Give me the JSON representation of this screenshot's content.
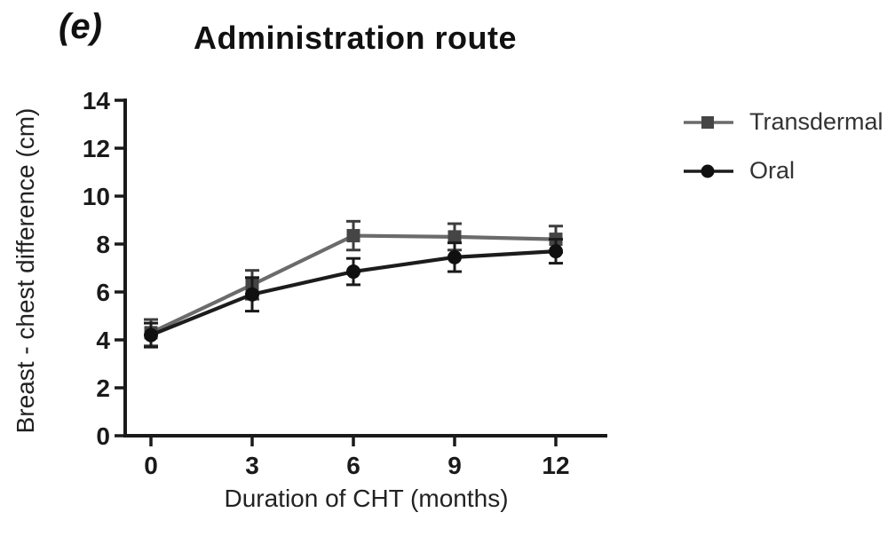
{
  "figure": {
    "panel_label": "(e)",
    "title": "Administration route",
    "background_color": "#ffffff",
    "axis_color": "#1a1a1a",
    "x_axis": {
      "label": "Duration of CHT (months)",
      "ticks": [
        0,
        3,
        6,
        9,
        12
      ]
    },
    "y_axis": {
      "label": "Breast - chest difference (cm)",
      "ticks": [
        0,
        2,
        4,
        6,
        8,
        10,
        12,
        14
      ]
    }
  },
  "chart_data": {
    "type": "line",
    "title": "Administration route",
    "xlabel": "Duration of CHT (months)",
    "ylabel": "Breast - chest difference (cm)",
    "x": [
      0,
      3,
      6,
      9,
      12
    ],
    "xlim": [
      0,
      13.5
    ],
    "ylim": [
      0,
      14
    ],
    "grid": false,
    "legend_position": "right-outside",
    "error_bars": true,
    "series": [
      {
        "name": "Transdermal",
        "marker": "square",
        "line_color": "#6b6b6b",
        "marker_color": "#454545",
        "error_color": "#3d3d3d",
        "values": [
          4.3,
          6.3,
          8.35,
          8.3,
          8.2
        ],
        "errors": [
          0.55,
          0.6,
          0.6,
          0.55,
          0.55
        ]
      },
      {
        "name": "Oral",
        "marker": "circle",
        "line_color": "#1c1c1c",
        "marker_color": "#101010",
        "error_color": "#1a1a1a",
        "values": [
          4.2,
          5.9,
          6.85,
          7.45,
          7.7
        ],
        "errors": [
          0.5,
          0.7,
          0.55,
          0.6,
          0.5
        ]
      }
    ]
  }
}
